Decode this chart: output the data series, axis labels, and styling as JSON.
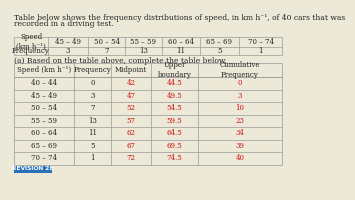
{
  "title_line1": "Table below shows the frequency distributions of speed, in km h⁻¹, of 40 cars that was",
  "title_line2": "recorded in a driving test.",
  "top_headers": [
    "Speed\n(km h⁻¹)",
    "45 – 49",
    "50 – 54",
    "55 – 59",
    "60 – 64",
    "65 – 69",
    "70 – 74"
  ],
  "top_freq": [
    "Frequency",
    "3",
    "7",
    "13",
    "11",
    "5",
    "1"
  ],
  "sub_title": "(a) Based on the table above, complete the table below.",
  "bt_headers": [
    "Speed (km h⁻¹)",
    "Frequency",
    "Midpoint",
    "Upper\nboundary",
    "Cumulative\nFrequency"
  ],
  "bt_rows": [
    [
      "40 – 44",
      "0",
      "42",
      "44.5",
      "0"
    ],
    [
      "45 – 49",
      "3",
      "47",
      "49.5",
      "3"
    ],
    [
      "50 – 54",
      "7",
      "52",
      "54.5",
      "10"
    ],
    [
      "55 – 59",
      "13",
      "57",
      "59.5",
      "23"
    ],
    [
      "60 – 64",
      "11",
      "62",
      "64.5",
      "34"
    ],
    [
      "65 – 69",
      "5",
      "67",
      "69.5",
      "39"
    ],
    [
      "70 – 74",
      "1",
      "72",
      "74.5",
      "40"
    ]
  ],
  "bt_red_cols": [
    2,
    3,
    4
  ],
  "revision_label": "REVISION 28",
  "revision_bg": "#2970b8",
  "revision_fg": "#ffffff",
  "bg_color": "#ede9d8",
  "line_color": "#999999",
  "black": "#222222",
  "red": "#cc1111",
  "fs_title": 5.5,
  "fs_table": 5.0,
  "fs_header": 5.0,
  "fs_rev": 4.2
}
